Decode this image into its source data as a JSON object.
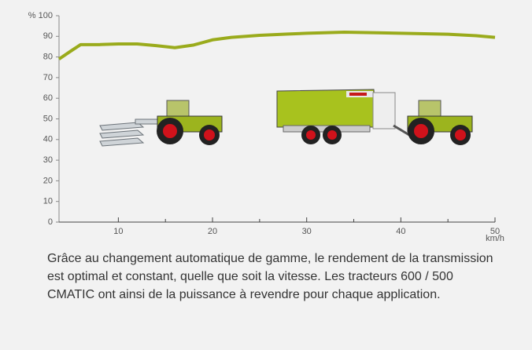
{
  "chart_data": {
    "type": "line",
    "x": [
      3.7,
      5,
      6,
      8,
      10,
      12,
      14,
      16,
      18,
      20,
      22,
      25,
      28,
      30,
      34,
      38,
      40,
      45,
      48,
      50
    ],
    "series": [
      {
        "color": "#9aab1c",
        "values": [
          79,
          83,
          86,
          86,
          86.3,
          86.3,
          85.5,
          84.5,
          85.8,
          88.3,
          89.5,
          90.5,
          91.1,
          91.5,
          92,
          91.7,
          91.5,
          91,
          90.3,
          89.5
        ]
      }
    ],
    "xlim": [
      3.7,
      50
    ],
    "xticks": [
      10,
      20,
      30,
      40,
      50
    ],
    "xminorticks": [
      15,
      25,
      35,
      45
    ],
    "ylim": [
      0,
      100
    ],
    "yticks": [
      0,
      10,
      20,
      30,
      40,
      50,
      60,
      70,
      80,
      90,
      {
        "value": 100,
        "label": "% 100"
      }
    ],
    "xlabel": "km/h",
    "caption": "Grâce au changement automatique de gamme, le rendement de la transmission est optimal et constant, quelle que soit la vitesse. Les tracteurs 600 / 500 CMATIC ont ainsi de la puissance à revendre pour chaque application."
  }
}
